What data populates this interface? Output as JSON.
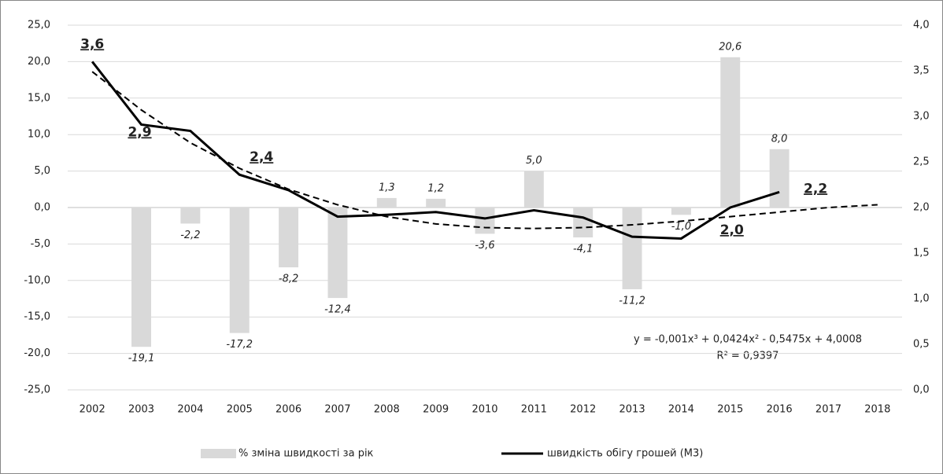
{
  "chart_data": {
    "type": "combo",
    "categories": [
      "2002",
      "2003",
      "2004",
      "2005",
      "2006",
      "2007",
      "2008",
      "2009",
      "2010",
      "2011",
      "2012",
      "2013",
      "2014",
      "2015",
      "2016",
      "2017",
      "2018"
    ],
    "series": [
      {
        "name": "% зміна швидкості за рік",
        "type": "bar",
        "color": "#d9d9d9",
        "values": [
          null,
          -19.1,
          -2.2,
          -17.2,
          -8.2,
          -12.4,
          1.3,
          1.2,
          -3.6,
          5.0,
          -4.1,
          -11.2,
          -1.0,
          20.6,
          8.0,
          null,
          null
        ],
        "value_labels": [
          null,
          "-19,1",
          "-2,2",
          "-17,2",
          "-8,2",
          "-12,4",
          "1,3",
          "1,2",
          "-3,6",
          "5,0",
          "-4,1",
          "-11,2",
          "-1,0",
          "20,6",
          "8,0",
          null,
          null
        ]
      },
      {
        "name": "швидкість обігу грошей (М3)",
        "type": "line",
        "axis": "y2",
        "color": "#000000",
        "values": [
          3.6,
          2.91,
          2.84,
          2.36,
          2.19,
          1.9,
          1.92,
          1.95,
          1.88,
          1.97,
          1.89,
          1.68,
          1.66,
          2.0,
          2.17,
          null,
          null
        ],
        "value_labels": [
          "3,6",
          "2,9",
          null,
          "2,4",
          null,
          null,
          null,
          null,
          null,
          null,
          null,
          null,
          null,
          "2,0",
          "2,2",
          null,
          null
        ]
      }
    ],
    "trendline": {
      "axis": "y2",
      "color": "#000000",
      "values": [
        3.49,
        3.07,
        2.71,
        2.43,
        2.2,
        2.03,
        1.9,
        1.82,
        1.78,
        1.77,
        1.78,
        1.81,
        1.85,
        1.9,
        1.95,
        2.0,
        2.03
      ]
    },
    "annotations": [
      "y = -0,001x³ + 0,0424x² - 0,5475x + 4,0008",
      "R² = 0,9397"
    ],
    "ylim": [
      -25,
      25
    ],
    "yticks": [
      {
        "value": -25,
        "label": "-25,0"
      },
      {
        "value": -20,
        "label": "-20,0"
      },
      {
        "value": -15,
        "label": "-15,0"
      },
      {
        "value": -10,
        "label": "-10,0"
      },
      {
        "value": -5,
        "label": "-5,0"
      },
      {
        "value": 0,
        "label": "0,0"
      },
      {
        "value": 5,
        "label": "5,0"
      },
      {
        "value": 10,
        "label": "10,0"
      },
      {
        "value": 15,
        "label": "15,0"
      },
      {
        "value": 20,
        "label": "20,0"
      },
      {
        "value": 25,
        "label": "25,0"
      }
    ],
    "y2lim": [
      0,
      4
    ],
    "y2ticks": [
      {
        "value": 0,
        "label": "0,0"
      },
      {
        "value": 0.5,
        "label": "0,5"
      },
      {
        "value": 1,
        "label": "1,0"
      },
      {
        "value": 1.5,
        "label": "1,5"
      },
      {
        "value": 2,
        "label": "2,0"
      },
      {
        "value": 2.5,
        "label": "2,5"
      },
      {
        "value": 3,
        "label": "3,0"
      },
      {
        "value": 3.5,
        "label": "3,5"
      },
      {
        "value": 4,
        "label": "4,0"
      }
    ],
    "grid": true,
    "legend": "bottom"
  }
}
